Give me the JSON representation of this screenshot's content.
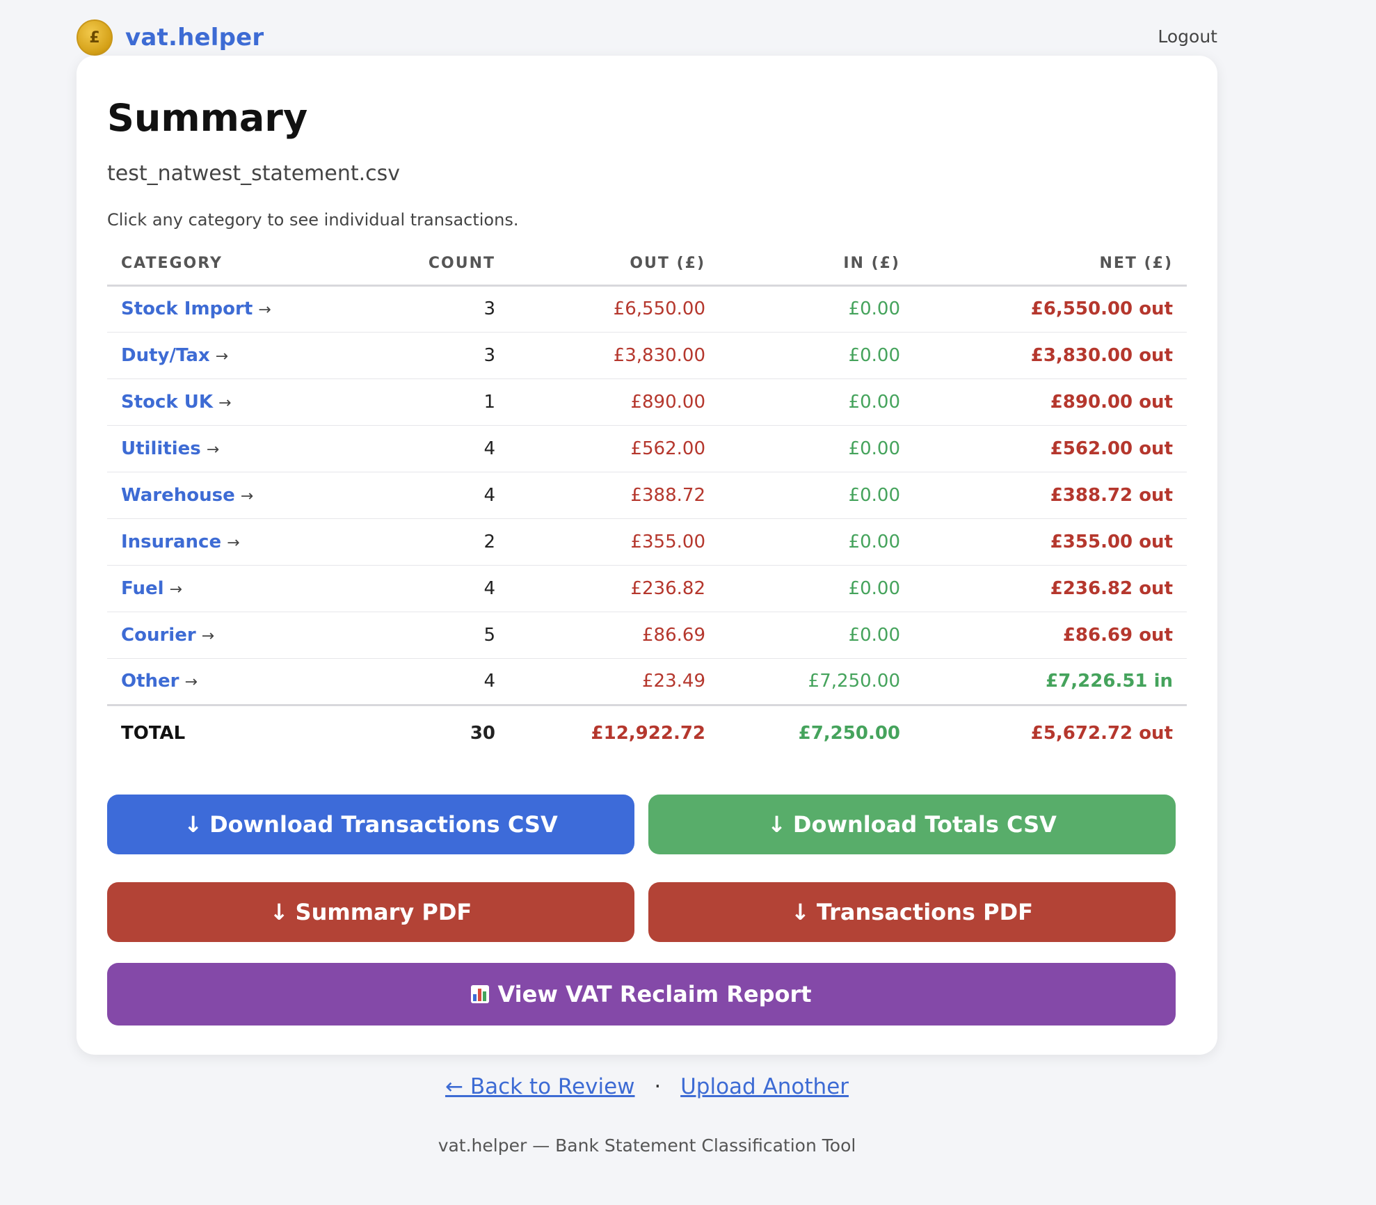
{
  "header": {
    "logo_symbol": "£",
    "brand": "vat.helper",
    "logout_label": "Logout"
  },
  "page": {
    "title": "Summary",
    "filename": "test_natwest_statement.csv",
    "hint": "Click any category to see individual transactions."
  },
  "table": {
    "headers": {
      "category": "CATEGORY",
      "count": "COUNT",
      "out": "OUT (£)",
      "in": "IN (£)",
      "net": "NET (£)"
    },
    "rows": [
      {
        "category": "Stock Import",
        "count": "3",
        "out": "£6,550.00",
        "in": "£0.00",
        "net": "£6,550.00 out",
        "direction": "out"
      },
      {
        "category": "Duty/Tax",
        "count": "3",
        "out": "£3,830.00",
        "in": "£0.00",
        "net": "£3,830.00 out",
        "direction": "out"
      },
      {
        "category": "Stock UK",
        "count": "1",
        "out": "£890.00",
        "in": "£0.00",
        "net": "£890.00 out",
        "direction": "out"
      },
      {
        "category": "Utilities",
        "count": "4",
        "out": "£562.00",
        "in": "£0.00",
        "net": "£562.00 out",
        "direction": "out"
      },
      {
        "category": "Warehouse",
        "count": "4",
        "out": "£388.72",
        "in": "£0.00",
        "net": "£388.72 out",
        "direction": "out"
      },
      {
        "category": "Insurance",
        "count": "2",
        "out": "£355.00",
        "in": "£0.00",
        "net": "£355.00 out",
        "direction": "out"
      },
      {
        "category": "Fuel",
        "count": "4",
        "out": "£236.82",
        "in": "£0.00",
        "net": "£236.82 out",
        "direction": "out"
      },
      {
        "category": "Courier",
        "count": "5",
        "out": "£86.69",
        "in": "£0.00",
        "net": "£86.69 out",
        "direction": "out"
      },
      {
        "category": "Other",
        "count": "4",
        "out": "£23.49",
        "in": "£7,250.00",
        "net": "£7,226.51 in",
        "direction": "in"
      }
    ],
    "row_arrow": "→",
    "total": {
      "label": "TOTAL",
      "count": "30",
      "out": "£12,922.72",
      "in": "£7,250.00",
      "net": "£5,672.72 out"
    }
  },
  "actions": {
    "download_arrow": "↓",
    "download_transactions_csv": "Download Transactions CSV",
    "download_totals_csv": "Download Totals CSV",
    "summary_pdf": "Summary PDF",
    "transactions_pdf": "Transactions PDF",
    "vat_reclaim": "View VAT Reclaim Report",
    "vat_reclaim_icon": "bar-chart-icon"
  },
  "footer": {
    "back_link": "← Back to Review",
    "separator": "·",
    "upload_link": "Upload Another",
    "tagline": "vat.helper — Bank Statement Classification Tool"
  },
  "colors": {
    "brand_blue": "#3d6bd4",
    "out_red": "#b5372d",
    "in_green": "#45a35c",
    "btn_blue": "#3d6bd9",
    "btn_green": "#58ad6a",
    "btn_red": "#b34336",
    "btn_purple": "#8449a8"
  }
}
